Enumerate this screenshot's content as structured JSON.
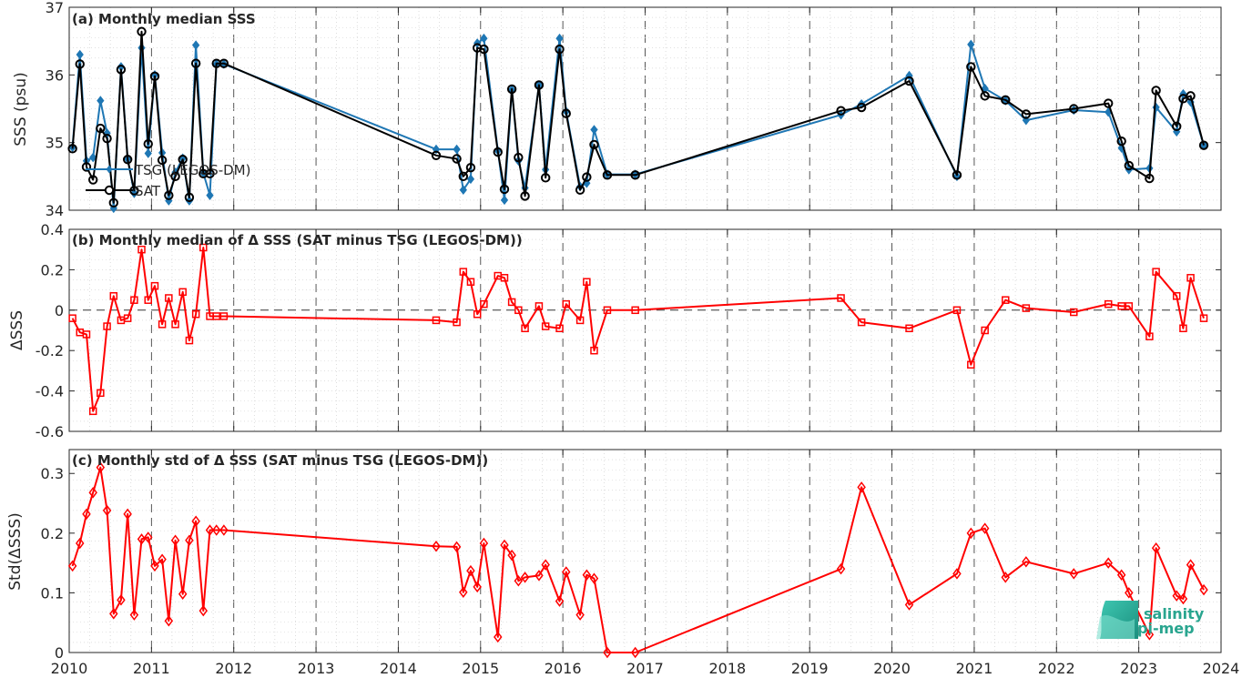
{
  "figure": {
    "x_ticks": [
      "2010",
      "2011",
      "2012",
      "2013",
      "2014",
      "2015",
      "2016",
      "2017",
      "2018",
      "2019",
      "2020",
      "2021",
      "2022",
      "2023",
      "2024"
    ],
    "logo": {
      "line1": "salinity",
      "line2": "pi-mep"
    }
  },
  "chart_data": [
    {
      "type": "line",
      "title": "(a) Monthly median SSS",
      "ylabel": "SSS (psu)",
      "xlim": [
        2010,
        2024
      ],
      "ylim": [
        34,
        37
      ],
      "yticks": [
        "34",
        "35",
        "36",
        "37"
      ],
      "legend_position": "top-left",
      "grid": true,
      "series": [
        {
          "name": "TSG (LEGOS-DM)",
          "color": "#1f77b4",
          "marker": "diamond-filled",
          "x": [
            2010.04,
            2010.13,
            2010.21,
            2010.29,
            2010.38,
            2010.46,
            2010.54,
            2010.63,
            2010.71,
            2010.79,
            2010.88,
            2010.96,
            2011.04,
            2011.13,
            2011.21,
            2011.29,
            2011.38,
            2011.46,
            2011.54,
            2011.63,
            2011.71,
            2011.79,
            2011.88,
            2014.46,
            2014.71,
            2014.79,
            2014.88,
            2014.96,
            2015.04,
            2015.21,
            2015.29,
            2015.38,
            2015.46,
            2015.54,
            2015.71,
            2015.79,
            2015.96,
            2016.04,
            2016.21,
            2016.29,
            2016.38,
            2016.54,
            2016.88,
            2019.38,
            2019.63,
            2020.21,
            2020.79,
            2020.96,
            2021.13,
            2021.38,
            2021.63,
            2022.21,
            2022.63,
            2022.79,
            2022.88,
            2023.13,
            2023.21,
            2023.46,
            2023.54,
            2023.63,
            2023.79
          ],
          "values": [
            34.93,
            36.3,
            34.73,
            34.78,
            35.62,
            35.14,
            34.03,
            36.12,
            34.76,
            34.25,
            36.4,
            34.84,
            36.0,
            34.85,
            34.14,
            34.56,
            34.77,
            34.14,
            36.44,
            34.55,
            34.22,
            36.16,
            36.16,
            34.9,
            34.9,
            34.3,
            34.46,
            36.47,
            36.54,
            34.88,
            34.15,
            35.78,
            34.73,
            34.33,
            35.85,
            34.6,
            36.54,
            35.46,
            34.35,
            34.4,
            35.19,
            34.53,
            34.53,
            35.41,
            35.57,
            35.99,
            34.5,
            36.45,
            35.8,
            35.62,
            35.33,
            35.48,
            35.45,
            34.92,
            34.6,
            34.62,
            35.52,
            35.16,
            35.72,
            35.6,
            34.96
          ]
        },
        {
          "name": "SAT",
          "color": "#000000",
          "marker": "circle-open",
          "x": [
            2010.04,
            2010.13,
            2010.21,
            2010.29,
            2010.38,
            2010.46,
            2010.54,
            2010.63,
            2010.71,
            2010.79,
            2010.88,
            2010.96,
            2011.04,
            2011.13,
            2011.21,
            2011.29,
            2011.38,
            2011.46,
            2011.54,
            2011.63,
            2011.71,
            2011.79,
            2011.88,
            2014.46,
            2014.71,
            2014.79,
            2014.88,
            2014.96,
            2015.04,
            2015.21,
            2015.29,
            2015.38,
            2015.46,
            2015.54,
            2015.71,
            2015.79,
            2015.96,
            2016.04,
            2016.21,
            2016.29,
            2016.38,
            2016.54,
            2016.88,
            2019.38,
            2019.63,
            2020.21,
            2020.79,
            2020.96,
            2021.13,
            2021.38,
            2021.63,
            2022.21,
            2022.63,
            2022.79,
            2022.88,
            2023.13,
            2023.21,
            2023.46,
            2023.54,
            2023.63,
            2023.79
          ],
          "values": [
            34.91,
            36.16,
            34.64,
            34.45,
            35.21,
            35.06,
            34.11,
            36.08,
            34.75,
            34.29,
            36.64,
            34.98,
            35.98,
            34.74,
            34.22,
            34.5,
            34.75,
            34.19,
            36.17,
            34.54,
            34.54,
            36.17,
            36.17,
            34.81,
            34.76,
            34.5,
            34.63,
            36.4,
            36.38,
            34.86,
            34.31,
            35.79,
            34.78,
            34.21,
            35.85,
            34.48,
            36.38,
            35.43,
            34.3,
            34.49,
            34.97,
            34.52,
            34.52,
            35.47,
            35.52,
            35.91,
            34.52,
            36.12,
            35.69,
            35.63,
            35.42,
            35.5,
            35.58,
            35.02,
            34.66,
            34.47,
            35.77,
            35.24,
            35.65,
            35.69,
            34.96
          ]
        }
      ]
    },
    {
      "type": "line",
      "title": "(b) Monthly median of Δ SSS (SAT minus TSG (LEGOS-DM))",
      "ylabel": "ΔSSS",
      "xlim": [
        2010,
        2024
      ],
      "ylim": [
        -0.6,
        0.4
      ],
      "yticks": [
        "-0.6",
        "-0.4",
        "-0.2",
        "0",
        "0.2",
        "0.4"
      ],
      "zero_line": true,
      "grid": true,
      "series": [
        {
          "color": "#ff0000",
          "marker": "square-open",
          "x": [
            2010.04,
            2010.13,
            2010.21,
            2010.29,
            2010.38,
            2010.46,
            2010.54,
            2010.63,
            2010.71,
            2010.79,
            2010.88,
            2010.96,
            2011.04,
            2011.13,
            2011.21,
            2011.29,
            2011.38,
            2011.46,
            2011.54,
            2011.63,
            2011.71,
            2011.79,
            2011.88,
            2014.46,
            2014.71,
            2014.79,
            2014.88,
            2014.96,
            2015.04,
            2015.21,
            2015.29,
            2015.38,
            2015.46,
            2015.54,
            2015.71,
            2015.79,
            2015.96,
            2016.04,
            2016.21,
            2016.29,
            2016.38,
            2016.54,
            2016.88,
            2019.38,
            2019.63,
            2020.21,
            2020.79,
            2020.96,
            2021.13,
            2021.38,
            2021.63,
            2022.21,
            2022.63,
            2022.79,
            2022.88,
            2023.13,
            2023.21,
            2023.46,
            2023.54,
            2023.63,
            2023.79
          ],
          "values": [
            -0.04,
            -0.11,
            -0.12,
            -0.5,
            -0.41,
            -0.08,
            0.07,
            -0.05,
            -0.04,
            0.05,
            0.3,
            0.05,
            0.12,
            -0.07,
            0.06,
            -0.07,
            0.09,
            -0.15,
            -0.02,
            0.31,
            -0.03,
            -0.03,
            -0.03,
            -0.05,
            -0.06,
            0.19,
            0.14,
            -0.02,
            0.03,
            0.17,
            0.16,
            0.04,
            0.0,
            -0.09,
            0.02,
            -0.08,
            -0.09,
            0.03,
            -0.05,
            0.14,
            -0.2,
            0.0,
            0.0,
            0.06,
            -0.06,
            -0.09,
            0.0,
            -0.27,
            -0.1,
            0.05,
            0.01,
            -0.01,
            0.03,
            0.02,
            0.02,
            -0.13,
            0.19,
            0.07,
            -0.09,
            0.16,
            -0.04
          ]
        }
      ]
    },
    {
      "type": "line",
      "title": "(c) Monthly std of Δ SSS (SAT minus TSG (LEGOS-DM))",
      "ylabel": "Std(ΔSSS)",
      "xlim": [
        2010,
        2024
      ],
      "ylim": [
        0,
        0.34
      ],
      "yticks": [
        "0",
        "0.1",
        "0.2",
        "0.3"
      ],
      "grid": true,
      "series": [
        {
          "color": "#ff0000",
          "marker": "diamond-open",
          "x": [
            2010.04,
            2010.13,
            2010.21,
            2010.29,
            2010.38,
            2010.46,
            2010.54,
            2010.63,
            2010.71,
            2010.79,
            2010.88,
            2010.96,
            2011.04,
            2011.13,
            2011.21,
            2011.29,
            2011.38,
            2011.46,
            2011.54,
            2011.63,
            2011.71,
            2011.79,
            2011.88,
            2014.46,
            2014.71,
            2014.79,
            2014.88,
            2014.96,
            2015.04,
            2015.21,
            2015.29,
            2015.38,
            2015.46,
            2015.54,
            2015.71,
            2015.79,
            2015.96,
            2016.04,
            2016.21,
            2016.29,
            2016.38,
            2016.54,
            2016.88,
            2019.38,
            2019.63,
            2020.21,
            2020.79,
            2020.96,
            2021.13,
            2021.38,
            2021.63,
            2022.21,
            2022.63,
            2022.79,
            2022.88,
            2023.13,
            2023.21,
            2023.46,
            2023.54,
            2023.63,
            2023.79
          ],
          "values": [
            0.145,
            0.183,
            0.232,
            0.268,
            0.31,
            0.238,
            0.065,
            0.088,
            0.232,
            0.063,
            0.19,
            0.193,
            0.145,
            0.156,
            0.053,
            0.188,
            0.098,
            0.188,
            0.22,
            0.07,
            0.205,
            0.205,
            0.205,
            0.178,
            0.177,
            0.101,
            0.137,
            0.11,
            0.183,
            0.026,
            0.18,
            0.163,
            0.12,
            0.126,
            0.129,
            0.147,
            0.086,
            0.135,
            0.063,
            0.13,
            0.124,
            0.0,
            0.0,
            0.14,
            0.277,
            0.08,
            0.132,
            0.2,
            0.208,
            0.126,
            0.152,
            0.132,
            0.15,
            0.13,
            0.1,
            0.03,
            0.175,
            0.095,
            0.09,
            0.147,
            0.105
          ]
        }
      ]
    }
  ]
}
